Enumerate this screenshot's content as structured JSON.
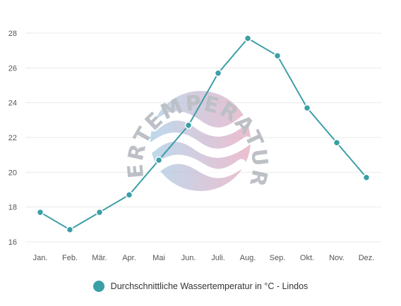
{
  "chart_data": {
    "type": "line",
    "categories": [
      "Jan.",
      "Feb.",
      "Mär.",
      "Apr.",
      "Mai",
      "Jun.",
      "Juli.",
      "Aug.",
      "Sep.",
      "Okt.",
      "Nov.",
      "Dez."
    ],
    "series": [
      {
        "name": "Durchschnittliche Wassertemperatur in °C - Lindos",
        "values": [
          17.7,
          16.7,
          17.7,
          18.7,
          20.7,
          22.7,
          25.7,
          27.7,
          26.7,
          23.7,
          21.7,
          19.7
        ],
        "color": "#3a9fa6"
      }
    ],
    "yticks": [
      16,
      18,
      20,
      22,
      24,
      26,
      28
    ],
    "ylim": [
      16,
      28
    ],
    "grid": "horizontal",
    "legend_position": "bottom-center",
    "watermark": "WASSERTEMPERATUR.ORG"
  }
}
